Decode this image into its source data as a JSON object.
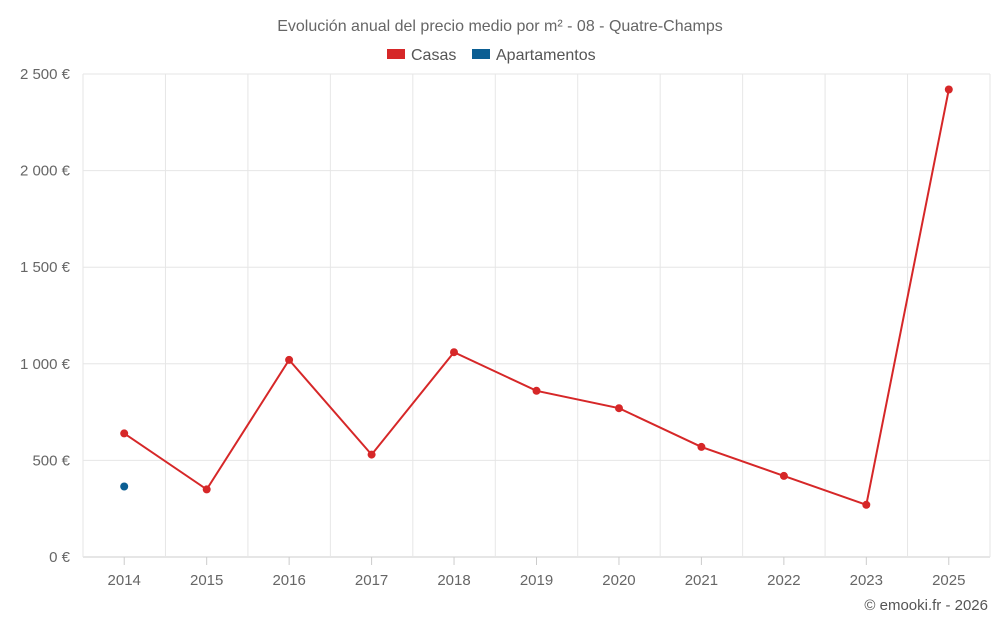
{
  "chart_data": {
    "type": "line",
    "title": "Evolución anual del precio medio por m² - 08 - Quatre-Champs",
    "categories": [
      "2014",
      "2015",
      "2016",
      "2017",
      "2018",
      "2019",
      "2020",
      "2021",
      "2022",
      "2023",
      "2025"
    ],
    "series": [
      {
        "name": "Casas",
        "color": "#d62728",
        "values": [
          640,
          350,
          1020,
          530,
          1060,
          860,
          770,
          570,
          420,
          270,
          2420
        ]
      },
      {
        "name": "Apartamentos",
        "color": "#0b5e93",
        "values": [
          365,
          null,
          null,
          null,
          null,
          null,
          null,
          null,
          null,
          null,
          null
        ]
      }
    ],
    "yticks": [
      0,
      500,
      1000,
      1500,
      2000,
      2500
    ],
    "ytick_labels": [
      "0 €",
      "500 €",
      "1 000 €",
      "1 500 €",
      "2 000 €",
      "2 500 €"
    ],
    "ylim": [
      0,
      2500
    ],
    "grid": true,
    "legend_position": "top-center",
    "credit": "© emooki.fr - 2026"
  }
}
